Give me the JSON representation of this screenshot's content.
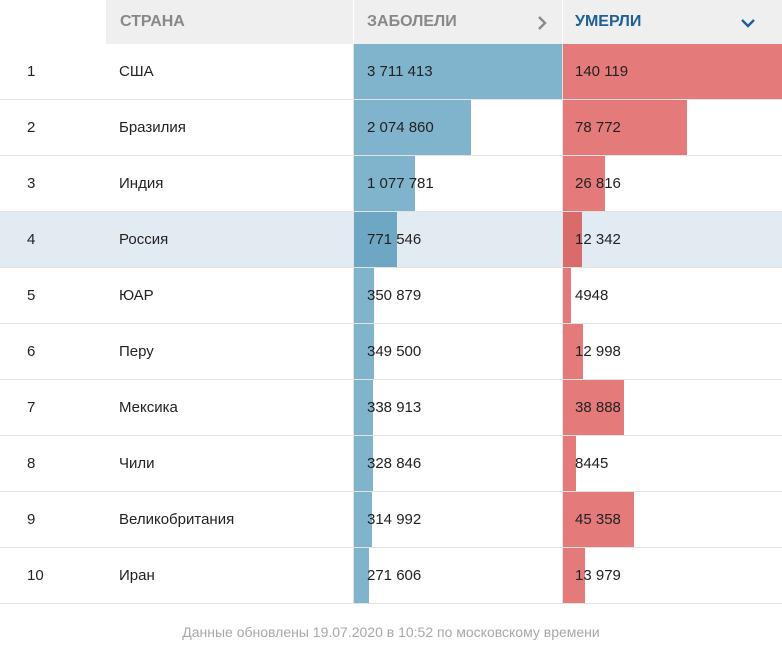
{
  "header": {
    "country": "Страна",
    "cases": "Заболели",
    "deaths": "Умерли",
    "cases_icon": "chevron-right-icon",
    "deaths_icon": "chevron-down-icon",
    "sorted_column_color": "#1f5f95"
  },
  "max_cases": 3711413,
  "max_deaths": 140119,
  "rows": [
    {
      "rank": "1",
      "country": "США",
      "cases": "3 711 413",
      "deaths": "140 119",
      "cases_n": 3711413,
      "deaths_n": 140119
    },
    {
      "rank": "2",
      "country": "Бразилия",
      "cases": "2 074 860",
      "deaths": "78 772",
      "cases_n": 2074860,
      "deaths_n": 78772
    },
    {
      "rank": "3",
      "country": "Индия",
      "cases": "1 077 781",
      "deaths": "26 816",
      "cases_n": 1077781,
      "deaths_n": 26816
    },
    {
      "rank": "4",
      "country": "Россия",
      "cases": "771 546",
      "deaths": "12 342",
      "cases_n": 771546,
      "deaths_n": 12342,
      "highlight": true
    },
    {
      "rank": "5",
      "country": "ЮАР",
      "cases": "350 879",
      "deaths": "4948",
      "cases_n": 350879,
      "deaths_n": 4948
    },
    {
      "rank": "6",
      "country": "Перу",
      "cases": "349 500",
      "deaths": "12 998",
      "cases_n": 349500,
      "deaths_n": 12998
    },
    {
      "rank": "7",
      "country": "Мексика",
      "cases": "338 913",
      "deaths": "38 888",
      "cases_n": 338913,
      "deaths_n": 38888
    },
    {
      "rank": "8",
      "country": "Чили",
      "cases": "328 846",
      "deaths": "8445",
      "cases_n": 328846,
      "deaths_n": 8445
    },
    {
      "rank": "9",
      "country": "Великобритания",
      "cases": "314 992",
      "deaths": "45 358",
      "cases_n": 314992,
      "deaths_n": 45358
    },
    {
      "rank": "10",
      "country": "Иран",
      "cases": "271 606",
      "deaths": "13 979",
      "cases_n": 271606,
      "deaths_n": 13979
    }
  ],
  "footer": "Данные обновлены 19.07.2020 в 10:52 по московскому времени",
  "colors": {
    "cases_bar": "#80b4cd",
    "deaths_bar": "#e57a7a",
    "highlight_row": "#e3ebf2"
  }
}
